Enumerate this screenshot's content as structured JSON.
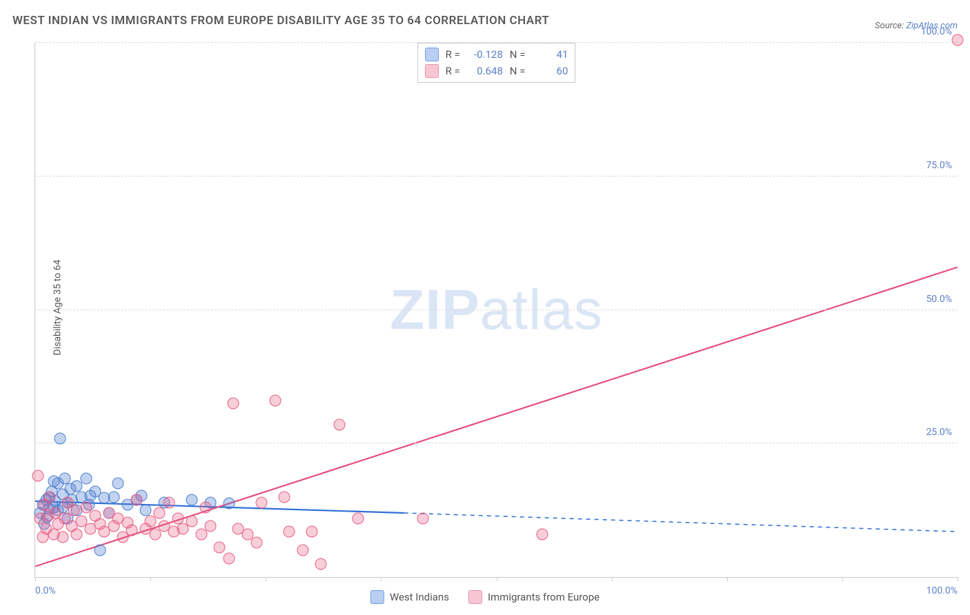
{
  "title": "WEST INDIAN VS IMMIGRANTS FROM EUROPE DISABILITY AGE 35 TO 64 CORRELATION CHART",
  "source_label": "Source:",
  "source_value": "ZipAtlas.com",
  "ylabel": "Disability Age 35 to 64",
  "watermark_bold": "ZIP",
  "watermark_rest": "atlas",
  "chart": {
    "type": "scatter",
    "xlim": [
      0,
      100
    ],
    "ylim": [
      0,
      100
    ],
    "xtick_positions": [
      0,
      12.5,
      25,
      37.5,
      50,
      62.5,
      75,
      87.5,
      100
    ],
    "xtick_labels": {
      "0": "0.0%",
      "100": "100.0%"
    },
    "ytick_positions": [
      25,
      50,
      75,
      100
    ],
    "ytick_labels": {
      "25": "25.0%",
      "50": "50.0%",
      "75": "75.0%",
      "100": "100.0%"
    },
    "grid_color": "#d9d9d9",
    "axis_color": "#c9c9c9",
    "background_color": "#ffffff",
    "tick_label_color": "#5b7fc7",
    "tick_label_fontsize": 14,
    "marker_radius": 8.5,
    "marker_border_width": 1.5,
    "marker_fill_opacity": 0.35,
    "series": [
      {
        "name": "West Indians",
        "color_fill": "rgba(82,130,210,0.35)",
        "color_stroke": "#4a7fd1",
        "swatch_fill": "#b9cef0",
        "swatch_border": "#6a9de8",
        "R": "-0.128",
        "N": "41",
        "points": [
          [
            0.5,
            12
          ],
          [
            0.8,
            13.5
          ],
          [
            1,
            10
          ],
          [
            1.2,
            14.5
          ],
          [
            1.3,
            11.2
          ],
          [
            1.5,
            15
          ],
          [
            1.5,
            12.8
          ],
          [
            1.8,
            16
          ],
          [
            2,
            13
          ],
          [
            2,
            18
          ],
          [
            2.2,
            14.2
          ],
          [
            2.5,
            17.5
          ],
          [
            2.5,
            12.5
          ],
          [
            2.7,
            26
          ],
          [
            3,
            15.5
          ],
          [
            3,
            13
          ],
          [
            3.2,
            18.5
          ],
          [
            3.5,
            14
          ],
          [
            3.5,
            11
          ],
          [
            3.8,
            16.5
          ],
          [
            4,
            14.5
          ],
          [
            4.5,
            17
          ],
          [
            4.5,
            12.5
          ],
          [
            5,
            15
          ],
          [
            5.5,
            18.5
          ],
          [
            5.8,
            13.5
          ],
          [
            6,
            15.2
          ],
          [
            6.5,
            16
          ],
          [
            7,
            5
          ],
          [
            7.5,
            14.8
          ],
          [
            8,
            12
          ],
          [
            8.5,
            15
          ],
          [
            9,
            17.5
          ],
          [
            10,
            13.5
          ],
          [
            11,
            14.5
          ],
          [
            11.5,
            15.2
          ],
          [
            12,
            12.5
          ],
          [
            14,
            14
          ],
          [
            17,
            14.5
          ],
          [
            19,
            14
          ],
          [
            21,
            13.8
          ]
        ],
        "trend": {
          "x1": 0,
          "y1": 14.2,
          "x2": 40,
          "y2": 12.0,
          "dash_x1": 40,
          "dash_y1": 12.0,
          "dash_x2": 100,
          "dash_y2": 8.5,
          "width": 2.2,
          "color": "#2f6fd6",
          "dash": "6,6"
        }
      },
      {
        "name": "Immigrants from Europe",
        "color_fill": "rgba(232,92,132,0.30)",
        "color_stroke": "#e85c84",
        "swatch_fill": "#f6c6d4",
        "swatch_border": "#ee8fab",
        "R": "0.648",
        "N": "60",
        "points": [
          [
            0.3,
            19
          ],
          [
            0.5,
            11
          ],
          [
            0.8,
            7.5
          ],
          [
            1,
            13.5
          ],
          [
            1.2,
            9
          ],
          [
            1.4,
            11.5
          ],
          [
            1.6,
            15
          ],
          [
            2,
            8
          ],
          [
            2.2,
            12
          ],
          [
            2.5,
            10
          ],
          [
            3,
            7.5
          ],
          [
            3.2,
            11
          ],
          [
            3.5,
            14
          ],
          [
            4,
            9.5
          ],
          [
            4.2,
            12.5
          ],
          [
            4.5,
            8
          ],
          [
            5,
            10.5
          ],
          [
            5.5,
            13
          ],
          [
            6,
            9
          ],
          [
            6.5,
            11.5
          ],
          [
            7,
            10
          ],
          [
            7.5,
            8.5
          ],
          [
            8,
            12
          ],
          [
            8.5,
            9.5
          ],
          [
            9,
            11
          ],
          [
            9.5,
            7.5
          ],
          [
            10,
            10.2
          ],
          [
            10.5,
            8.8
          ],
          [
            11,
            14.5
          ],
          [
            12,
            9
          ],
          [
            12.5,
            10.5
          ],
          [
            13,
            8
          ],
          [
            13.5,
            12
          ],
          [
            14,
            9.5
          ],
          [
            14.5,
            14
          ],
          [
            15,
            8.5
          ],
          [
            15.5,
            11
          ],
          [
            16,
            9
          ],
          [
            17,
            10.5
          ],
          [
            18,
            8
          ],
          [
            18.5,
            13
          ],
          [
            19,
            9.5
          ],
          [
            20,
            5.5
          ],
          [
            21,
            3.5
          ],
          [
            21.5,
            32.5
          ],
          [
            22,
            9
          ],
          [
            23,
            8
          ],
          [
            24,
            6.5
          ],
          [
            24.5,
            14
          ],
          [
            26,
            33
          ],
          [
            27,
            15
          ],
          [
            27.5,
            8.5
          ],
          [
            29,
            5
          ],
          [
            30,
            8.5
          ],
          [
            31,
            2.5
          ],
          [
            33,
            28.5
          ],
          [
            35,
            11
          ],
          [
            42,
            11
          ],
          [
            55,
            8
          ],
          [
            101,
            100.5
          ]
        ],
        "trend": {
          "x1": 0,
          "y1": 2,
          "x2": 100,
          "y2": 58,
          "width": 2.2,
          "color": "#e64d7a"
        }
      }
    ]
  },
  "bottom_legend": [
    {
      "label": "West Indians",
      "fill": "#b9cef0",
      "border": "#6a9de8"
    },
    {
      "label": "Immigrants from Europe",
      "fill": "#f6c6d4",
      "border": "#ee8fab"
    }
  ]
}
